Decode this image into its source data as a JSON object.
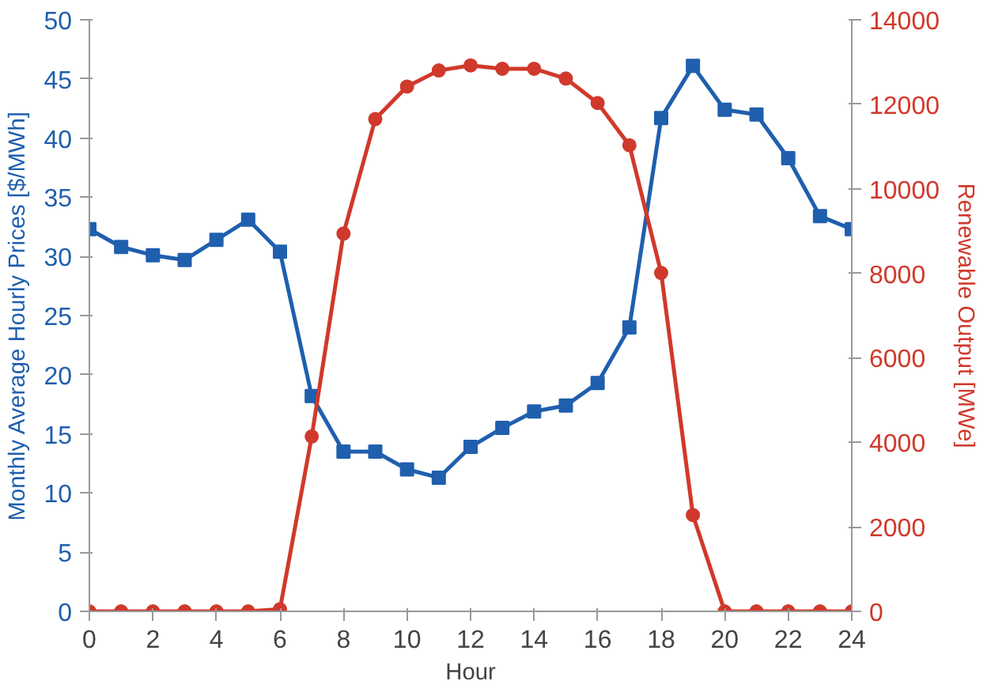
{
  "chart_data": {
    "type": "line",
    "xlabel": "Hour",
    "ylabel": "Monthly Average Hourly Prices [$/MWh]",
    "y2label": "Renewable Output [MWe]",
    "x": [
      0,
      1,
      2,
      3,
      4,
      5,
      6,
      7,
      8,
      9,
      10,
      11,
      12,
      13,
      14,
      15,
      16,
      17,
      18,
      19,
      20,
      21,
      22,
      23,
      24
    ],
    "xlim": [
      0,
      24
    ],
    "xticks": [
      0,
      2,
      4,
      6,
      8,
      10,
      12,
      14,
      16,
      18,
      20,
      22,
      24
    ],
    "ylim": [
      0,
      50
    ],
    "yticks": [
      0,
      5,
      10,
      15,
      20,
      25,
      30,
      35,
      40,
      45,
      50
    ],
    "y2lim": [
      0,
      14000
    ],
    "y2ticks": [
      0,
      2000,
      4000,
      6000,
      8000,
      10000,
      12000,
      14000
    ],
    "grid": false,
    "series": [
      {
        "color": "#1f5fae",
        "marker": "square",
        "values": [
          32.3,
          30.8,
          30.1,
          29.7,
          31.4,
          33.1,
          30.4,
          18.2,
          13.5,
          13.5,
          12.0,
          11.3,
          13.9,
          15.5,
          16.9,
          17.4,
          19.3,
          24.0,
          41.7,
          46.1,
          42.4,
          42.0,
          38.3,
          33.4,
          32.3
        ]
      },
      {
        "color": "#d0392b",
        "marker": "circle",
        "axis": "y2",
        "values": [
          0,
          0,
          0,
          0,
          0,
          0,
          50,
          4140,
          8940,
          11650,
          12420,
          12800,
          12920,
          12840,
          12840,
          12610,
          12030,
          11030,
          8010,
          2280,
          0,
          0,
          0,
          0,
          0
        ]
      }
    ]
  }
}
